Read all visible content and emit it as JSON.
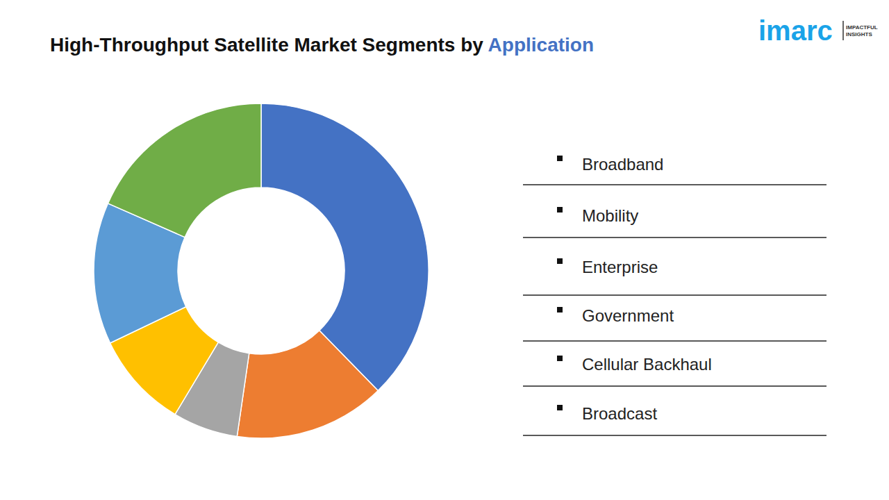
{
  "chart_data": {
    "type": "pie",
    "title": "High-Throughput Satellite Market Segments by Application",
    "logo": "imarc",
    "logo_tagline": [
      "IMPACTFUL",
      "INSIGHTS"
    ],
    "categories": [
      "Broadband",
      "Mobility",
      "Enterprise",
      "Government",
      "Cellular Backhaul",
      "Broadcast"
    ],
    "values": [
      37.7,
      14.6,
      6.3,
      9.3,
      13.7,
      18.4
    ],
    "colors": [
      "#4472c4",
      "#ed7d31",
      "#a5a5a5",
      "#ffc000",
      "#5b9bd5",
      "#70ad47"
    ],
    "data_labels": false
  }
}
